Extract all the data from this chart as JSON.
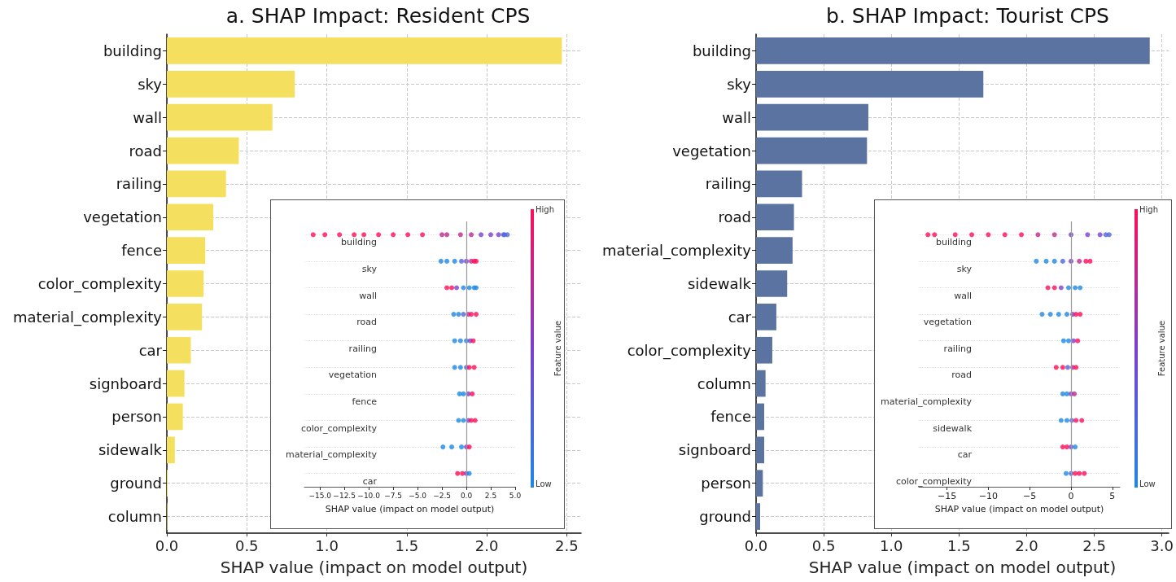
{
  "chart_data": [
    {
      "type": "bar",
      "orientation": "horizontal",
      "title": "a. SHAP Impact: Resident CPS",
      "xlabel": "SHAP value (impact on model output)",
      "categories": [
        "building",
        "sky",
        "wall",
        "road",
        "railing",
        "vegetation",
        "fence",
        "color_complexity",
        "material_complexity",
        "car",
        "signboard",
        "person",
        "sidewalk",
        "ground",
        "column"
      ],
      "values": [
        2.47,
        0.8,
        0.66,
        0.45,
        0.37,
        0.29,
        0.24,
        0.23,
        0.22,
        0.15,
        0.11,
        0.1,
        0.05,
        0.005,
        0.003
      ],
      "color": "#f4df5e",
      "xlim": [
        0,
        2.59
      ],
      "xticks": [
        {
          "value": 0,
          "label": "0.0"
        },
        0.5,
        {
          "value": 1,
          "label": "1.0"
        },
        1.5,
        {
          "value": 2,
          "label": "2.0"
        },
        2.5
      ],
      "grid": true
    },
    {
      "type": "bar",
      "orientation": "horizontal",
      "title": "b. SHAP Impact: Tourist CPS",
      "xlabel": "SHAP value (impact on model output)",
      "categories": [
        "building",
        "sky",
        "wall",
        "vegetation",
        "railing",
        "road",
        "material_complexity",
        "sidewalk",
        "car",
        "color_complexity",
        "column",
        "fence",
        "signboard",
        "person",
        "ground"
      ],
      "values": [
        2.91,
        1.68,
        0.83,
        0.82,
        0.34,
        0.28,
        0.27,
        0.23,
        0.15,
        0.12,
        0.07,
        0.06,
        0.06,
        0.05,
        0.03
      ],
      "color": "#5a73a0",
      "xlim": [
        0,
        3.05
      ],
      "xticks": [
        {
          "value": 0,
          "label": "0.0"
        },
        0.5,
        {
          "value": 1,
          "label": "1.0"
        },
        1.5,
        {
          "value": 2,
          "label": "2.0"
        },
        2.5,
        {
          "value": 3,
          "label": "3.0"
        }
      ],
      "grid": true
    },
    {
      "type": "scatter",
      "orientation": "horizontal",
      "xlabel": "SHAP value (impact on model output)",
      "clabel": "Feature value",
      "annotations": [
        "High",
        "Low"
      ],
      "categories": [
        "building",
        "sky",
        "wall",
        "road",
        "railing",
        "vegetation",
        "fence",
        "color_complexity",
        "material_complexity",
        "car"
      ],
      "series": [
        {
          "x": [
            "building",
            "building",
            "building",
            "building",
            "building",
            "building",
            "building",
            "building",
            "building",
            "building",
            "building",
            "building",
            "building",
            "building",
            "building",
            "building",
            "building",
            "building",
            "building",
            "sky",
            "sky",
            "sky",
            "sky",
            "sky",
            "sky",
            "sky",
            "sky",
            "wall",
            "wall",
            "wall",
            "wall",
            "wall",
            "wall",
            "wall",
            "road",
            "road",
            "road",
            "road",
            "road",
            "road",
            "railing",
            "railing",
            "railing",
            "railing",
            "railing",
            "vegetation",
            "vegetation",
            "vegetation",
            "vegetation",
            "vegetation",
            "fence",
            "fence",
            "fence",
            "fence",
            "color_complexity",
            "color_complexity",
            "color_complexity",
            "color_complexity",
            "color_complexity",
            "material_complexity",
            "material_complexity",
            "material_complexity",
            "material_complexity",
            "material_complexity",
            "car",
            "car",
            "car",
            "car"
          ],
          "values": [
            -15.7,
            -14.5,
            -13,
            -11.5,
            -10.5,
            -9,
            -7.5,
            -6,
            -4.5,
            -2.5,
            -2,
            -0.6,
            0.5,
            1.5,
            2.5,
            3.3,
            3.8,
            4.2,
            3.9,
            -2.6,
            -2,
            -1.2,
            -0.5,
            0,
            0.5,
            0.8,
            1.0,
            -2,
            -1.5,
            -1,
            -0.3,
            0.3,
            0.8,
            1.0,
            -1.3,
            -0.8,
            -0.3,
            0.2,
            0.5,
            1.0,
            -1.2,
            -0.6,
            0,
            0.4,
            0.7,
            -1.2,
            -0.6,
            0,
            0.3,
            0.8,
            -0.7,
            -0.3,
            0.2,
            0.6,
            -0.8,
            -0.3,
            0.2,
            0.5,
            0.9,
            -2.4,
            -1.5,
            -0.5,
            0,
            0.3,
            -0.9,
            -0.4,
            0,
            0.3
          ],
          "colors": [
            "#ff0d57",
            "#ff0d57",
            "#ff0d57",
            "#ff0d57",
            "#ff0d57",
            "#ff0d57",
            "#ff0d57",
            "#ff0d57",
            "#ff0d57",
            "#c0288f",
            "#c0288f",
            "#c0288f",
            "#c0288f",
            "#7b3fd0",
            "#7b3fd0",
            "#7b3fd0",
            "#4f66de",
            "#4f66de",
            "#4f66de",
            "#1e88e5",
            "#1e88e5",
            "#1e88e5",
            "#4f66de",
            "#7b3fd0",
            "#c0288f",
            "#ff0d57",
            "#ff0d57",
            "#ff0d57",
            "#ff0d57",
            "#7b3fd0",
            "#1e88e5",
            "#1e88e5",
            "#1e88e5",
            "#1e88e5",
            "#1e88e5",
            "#1e88e5",
            "#4f66de",
            "#c0288f",
            "#ff0d57",
            "#ff0d57",
            "#1e88e5",
            "#1e88e5",
            "#1e88e5",
            "#7b3fd0",
            "#ff0d57",
            "#1e88e5",
            "#1e88e5",
            "#4f66de",
            "#ff0d57",
            "#ff0d57",
            "#1e88e5",
            "#1e88e5",
            "#7b3fd0",
            "#ff0d57",
            "#1e88e5",
            "#1e88e5",
            "#7b3fd0",
            "#ff0d57",
            "#ff0d57",
            "#1e88e5",
            "#1e88e5",
            "#1e88e5",
            "#7b3fd0",
            "#ff0d57",
            "#ff0d57",
            "#ff0d57",
            "#7b3fd0",
            "#1e88e5"
          ]
        }
      ],
      "xlim": [
        -16.6,
        5.0
      ],
      "xticks": [
        {
          "value": -15,
          "label": "−15.0"
        },
        {
          "value": -12.5,
          "label": "−12.5"
        },
        {
          "value": -10,
          "label": "−10.0"
        },
        {
          "value": -7.5,
          "label": "−7.5"
        },
        {
          "value": -5,
          "label": "−5.0"
        },
        {
          "value": -2.5,
          "label": "−2.5"
        },
        {
          "value": 0,
          "label": "0.0"
        },
        2.5,
        {
          "value": 5,
          "label": "5.0"
        }
      ],
      "grid": "y",
      "ref_lines": [
        {
          "axis": "x",
          "value": 0,
          "color": "#999999"
        }
      ]
    },
    {
      "type": "scatter",
      "orientation": "horizontal",
      "xlabel": "SHAP value (impact on model output)",
      "clabel": "Feature value",
      "annotations": [
        "High",
        "Low"
      ],
      "categories": [
        "building",
        "sky",
        "wall",
        "vegetation",
        "railing",
        "road",
        "material_complexity",
        "sidewalk",
        "car",
        "color_complexity"
      ],
      "series": [
        {
          "x": [
            "building",
            "building",
            "building",
            "building",
            "building",
            "building",
            "building",
            "building",
            "building",
            "building",
            "building",
            "building",
            "building",
            "building",
            "sky",
            "sky",
            "sky",
            "sky",
            "sky",
            "sky",
            "sky",
            "sky",
            "wall",
            "wall",
            "wall",
            "wall",
            "wall",
            "wall",
            "vegetation",
            "vegetation",
            "vegetation",
            "vegetation",
            "vegetation",
            "vegetation",
            "vegetation",
            "railing",
            "railing",
            "railing",
            "railing",
            "road",
            "road",
            "road",
            "road",
            "road",
            "material_complexity",
            "material_complexity",
            "material_complexity",
            "material_complexity",
            "sidewalk",
            "sidewalk",
            "sidewalk",
            "sidewalk",
            "sidewalk",
            "car",
            "car",
            "car",
            "car",
            "color_complexity",
            "color_complexity",
            "color_complexity",
            "color_complexity",
            "color_complexity"
          ],
          "values": [
            -17.3,
            -16.5,
            -14,
            -12,
            -10,
            -8,
            -6,
            -4,
            -2,
            0,
            2,
            3.5,
            4.2,
            4.6,
            -4.2,
            -3,
            -2,
            -1,
            0,
            1,
            1.8,
            2.3,
            -2.8,
            -2,
            -1.2,
            -0.3,
            0.5,
            1.1,
            -3.5,
            -2.5,
            -1.5,
            -0.5,
            0.2,
            0.6,
            1.1,
            -0.9,
            -0.3,
            0.3,
            0.8,
            -1.8,
            -1.0,
            -0.4,
            0.2,
            0.6,
            -1,
            -0.5,
            0,
            0.4,
            -1.2,
            -0.5,
            0.1,
            0.6,
            1.3,
            -1,
            -0.5,
            0,
            0.5,
            -0.6,
            0,
            0.5,
            1,
            1.6
          ],
          "colors": [
            "#ff0d57",
            "#ff0d57",
            "#ff0d57",
            "#ff0d57",
            "#ff0d57",
            "#ff0d57",
            "#ff0d57",
            "#c0288f",
            "#c0288f",
            "#7b3fd0",
            "#7b3fd0",
            "#7b3fd0",
            "#4f66de",
            "#4f66de",
            "#1e88e5",
            "#1e88e5",
            "#1e88e5",
            "#4f66de",
            "#7b3fd0",
            "#c0288f",
            "#ff0d57",
            "#ff0d57",
            "#ff0d57",
            "#ff0d57",
            "#7b3fd0",
            "#1e88e5",
            "#1e88e5",
            "#1e88e5",
            "#1e88e5",
            "#1e88e5",
            "#1e88e5",
            "#1e88e5",
            "#7b3fd0",
            "#ff0d57",
            "#ff0d57",
            "#1e88e5",
            "#1e88e5",
            "#7b3fd0",
            "#ff0d57",
            "#ff0d57",
            "#ff0d57",
            "#4f66de",
            "#c0288f",
            "#ff0d57",
            "#1e88e5",
            "#1e88e5",
            "#7b3fd0",
            "#c0288f",
            "#1e88e5",
            "#1e88e5",
            "#4f66de",
            "#ff0d57",
            "#ff0d57",
            "#ff0d57",
            "#ff0d57",
            "#7b3fd0",
            "#1e88e5",
            "#1e88e5",
            "#4f66de",
            "#ff0d57",
            "#ff0d57",
            "#ff0d57"
          ]
        }
      ],
      "xlim": [
        -18.4,
        5.9
      ],
      "xticks": [
        {
          "value": -15,
          "label": "−15"
        },
        {
          "value": -10,
          "label": "−10"
        },
        {
          "value": -5,
          "label": "−5"
        },
        0,
        5
      ],
      "grid": "y",
      "ref_lines": [
        {
          "axis": "x",
          "value": 0,
          "color": "#999999"
        }
      ]
    }
  ]
}
